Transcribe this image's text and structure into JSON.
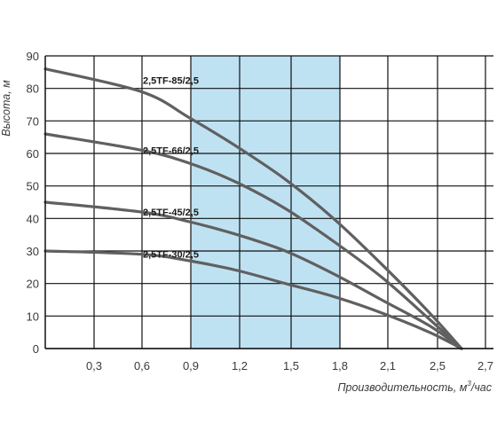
{
  "chart_data": {
    "type": "line",
    "xlabel": "Производительность, м",
    "xlabel_sup": "3",
    "xlabel_suffix": "/час",
    "ylabel": "Высота, м",
    "xlim": [
      0,
      2.6
    ],
    "ylim": [
      0,
      90
    ],
    "x_ticks": [
      {
        "value": 0.3,
        "label": "0,3"
      },
      {
        "value": 0.6,
        "label": "0,6"
      },
      {
        "value": 0.9,
        "label": "0,9"
      },
      {
        "value": 1.2,
        "label": "1,2"
      },
      {
        "value": 1.5,
        "label": "1,5"
      },
      {
        "value": 1.8,
        "label": "1,8"
      },
      {
        "value": 2.1,
        "label": "2,1"
      },
      {
        "value": 2.5,
        "label": "2,5"
      },
      {
        "value": 2.7,
        "label": "2,7"
      }
    ],
    "y_ticks": [
      0,
      10,
      20,
      30,
      40,
      50,
      60,
      70,
      80,
      90
    ],
    "grid": true,
    "highlight_band": {
      "x_from": 0.9,
      "x_to": 1.8,
      "color": "#bfe2f3"
    },
    "line_color": "#606060",
    "series": [
      {
        "name": "2,5TF-85/2,5",
        "x": [
          0,
          0.6,
          0.9,
          1.2,
          1.5,
          1.8,
          2.1,
          2.4,
          2.6
        ],
        "y": [
          86,
          79,
          71,
          62,
          52,
          40,
          26,
          11,
          0
        ]
      },
      {
        "name": "2,5TF-66/2,5",
        "x": [
          0,
          0.6,
          0.9,
          1.2,
          1.5,
          1.8,
          2.1,
          2.4,
          2.6
        ],
        "y": [
          66,
          61,
          57,
          51,
          43,
          33,
          22,
          9,
          0
        ]
      },
      {
        "name": "2,5TF-45/2,5",
        "x": [
          0,
          0.6,
          0.9,
          1.2,
          1.5,
          1.8,
          2.1,
          2.4,
          2.6
        ],
        "y": [
          45,
          42,
          39,
          35,
          30,
          23,
          15,
          7,
          0
        ]
      },
      {
        "name": "2,5TF-30/2,5",
        "x": [
          0,
          0.6,
          0.9,
          1.2,
          1.5,
          1.8,
          2.1,
          2.4,
          2.6
        ],
        "y": [
          30,
          29,
          27,
          24,
          20,
          16,
          11,
          5,
          0
        ]
      }
    ]
  }
}
